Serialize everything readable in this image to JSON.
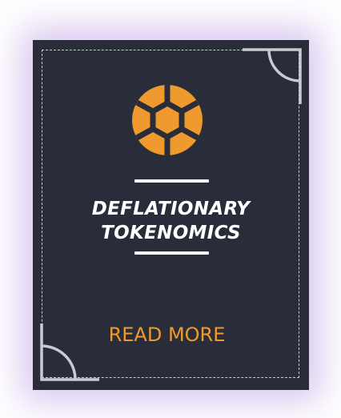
{
  "card": {
    "title_line1": "DEFLATIONARY",
    "title_line2": "TOKENOMICS",
    "read_more_label": "READ MORE",
    "logo_icon": "hexagon-ball-icon",
    "colors": {
      "card_background": "#292d39",
      "accent": "#ee9a2e",
      "text": "#ffffff",
      "decoration": "#c9cbd2",
      "glow": "#9664d2"
    }
  }
}
